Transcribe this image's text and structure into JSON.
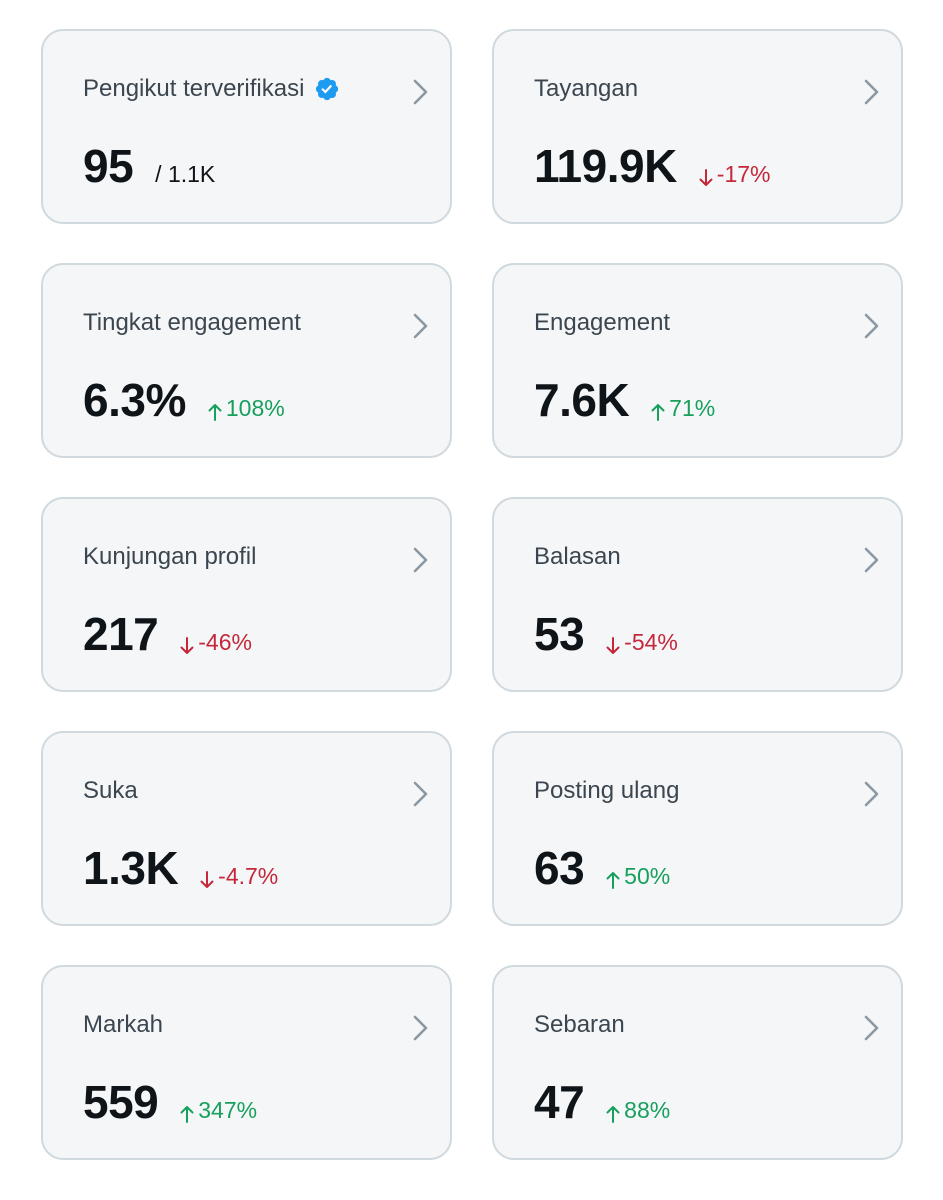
{
  "colors": {
    "card_bg": "#f5f6f7",
    "card_border": "#cfd9de",
    "value": "#0f1419",
    "label": "#3b4650",
    "up": "#17a05d",
    "down": "#c4283a",
    "verified": "#1d9bf0",
    "chevron": "#8b98a5"
  },
  "metrics": [
    {
      "label": "Pengikut terverifikasi",
      "value": "95",
      "sub": "/ 1.1K",
      "verified": true,
      "icon": "verified-badge-icon"
    },
    {
      "label": "Tayangan",
      "value": "119.9K",
      "change": "-17%",
      "direction": "down"
    },
    {
      "label": "Tingkat engagement",
      "value": "6.3%",
      "change": "108%",
      "direction": "up"
    },
    {
      "label": "Engagement",
      "value": "7.6K",
      "change": "71%",
      "direction": "up"
    },
    {
      "label": "Kunjungan profil",
      "value": "217",
      "change": "-46%",
      "direction": "down"
    },
    {
      "label": "Balasan",
      "value": "53",
      "change": "-54%",
      "direction": "down"
    },
    {
      "label": "Suka",
      "value": "1.3K",
      "change": "-4.7%",
      "direction": "down"
    },
    {
      "label": "Posting ulang",
      "value": "63",
      "change": "50%",
      "direction": "up"
    },
    {
      "label": "Markah",
      "value": "559",
      "change": "347%",
      "direction": "up"
    },
    {
      "label": "Sebaran",
      "value": "47",
      "change": "88%",
      "direction": "up"
    }
  ]
}
